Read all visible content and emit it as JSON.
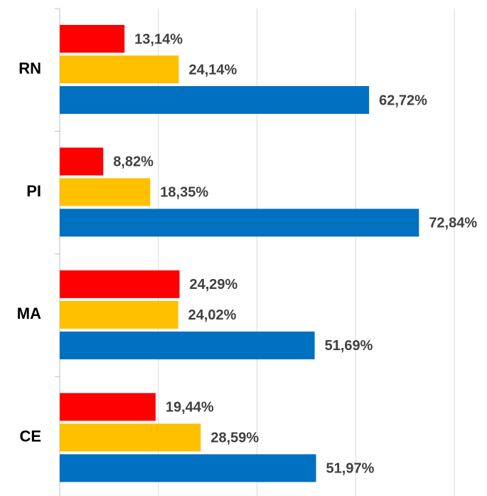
{
  "chart_data": {
    "type": "bar",
    "orientation": "horizontal",
    "categories": [
      "RN",
      "PI",
      "MA",
      "CE"
    ],
    "series": [
      {
        "color": "#ff0000",
        "values": [
          13.14,
          8.82,
          24.29,
          19.44
        ],
        "value_labels": [
          "13,14%",
          "8,82%",
          "24,29%",
          "19,44%"
        ]
      },
      {
        "color": "#ffc000",
        "values": [
          24.14,
          18.35,
          24.02,
          28.59
        ],
        "value_labels": [
          "24,14%",
          "18,35%",
          "24,02%",
          "28,59%"
        ]
      },
      {
        "color": "#0070c0",
        "values": [
          62.72,
          72.84,
          51.69,
          51.97
        ],
        "value_labels": [
          "62,72%",
          "72,84%",
          "51,69%",
          "51,97%"
        ]
      }
    ],
    "xlim": [
      0,
      80
    ],
    "xticks": [
      0,
      20,
      40,
      60,
      80
    ],
    "grid": true
  }
}
